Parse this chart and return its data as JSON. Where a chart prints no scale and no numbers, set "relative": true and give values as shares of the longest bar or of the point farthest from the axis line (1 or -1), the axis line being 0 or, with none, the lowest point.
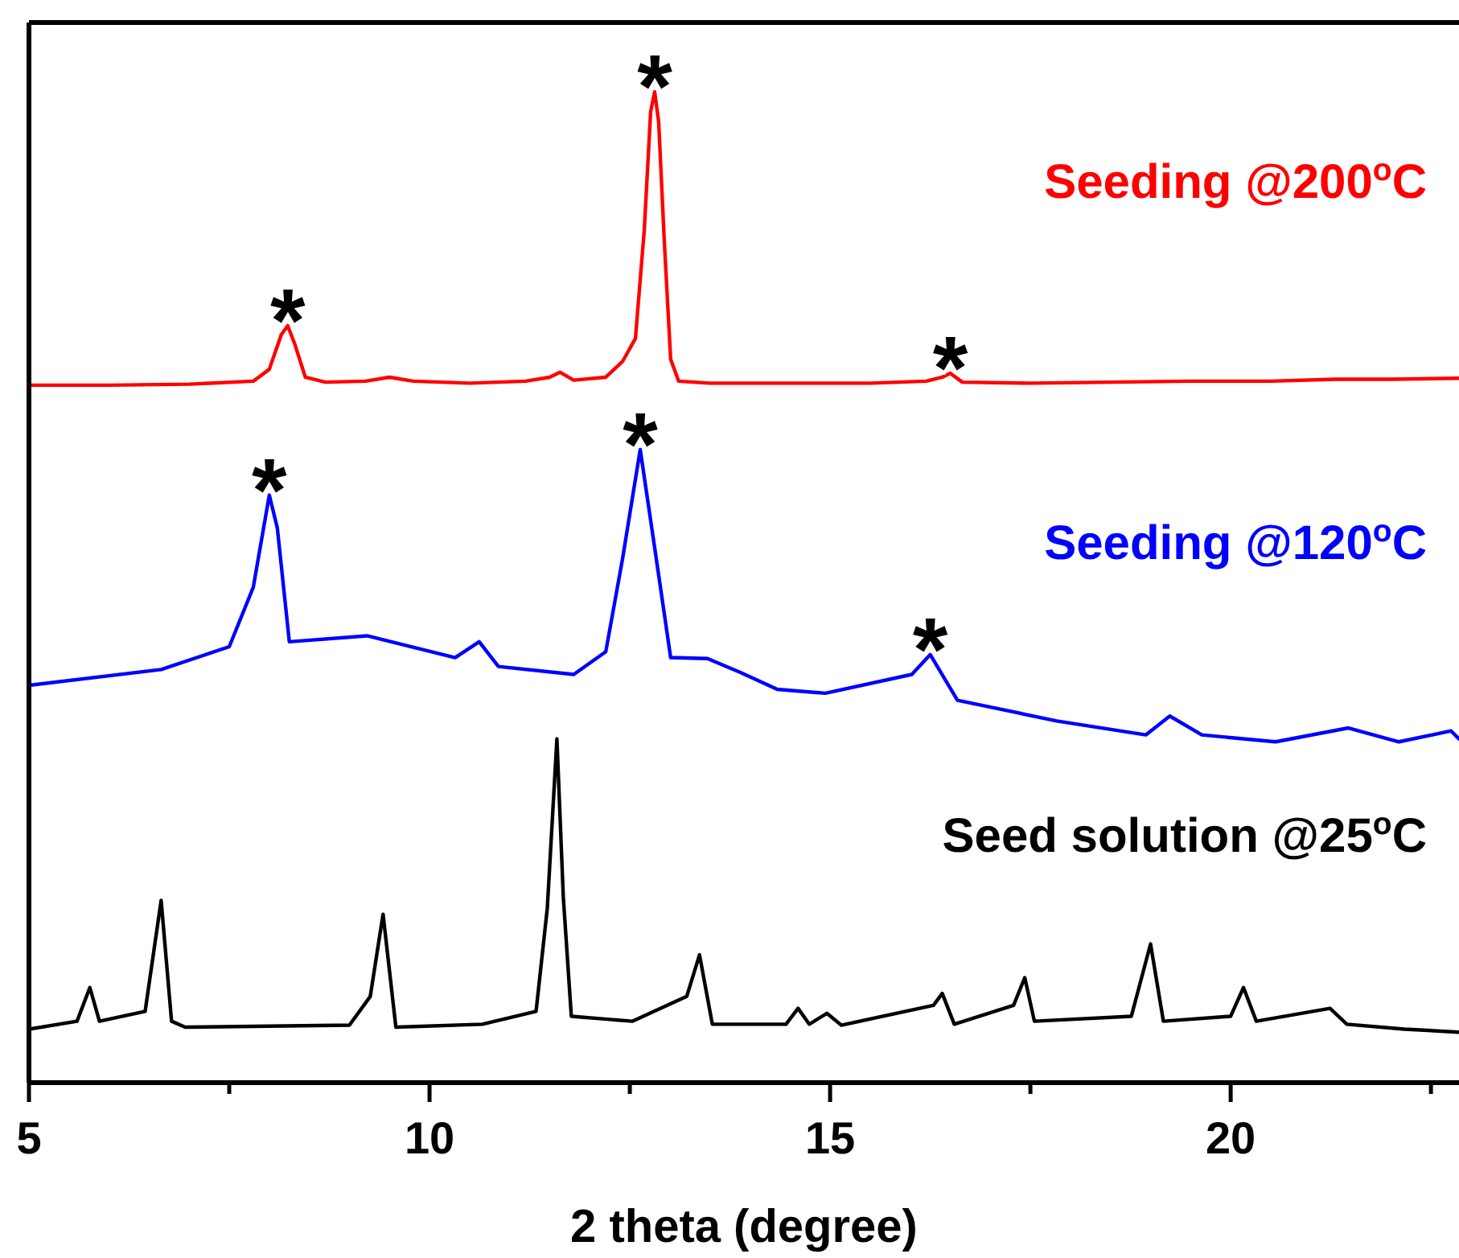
{
  "chart_data": {
    "type": "line",
    "relative": true,
    "xlabel": "2 theta (degree)",
    "xlim": [
      5,
      22.85
    ],
    "xticks": [
      5,
      {
        "value": 7.5,
        "label": null
      },
      10,
      {
        "value": 12.5,
        "label": null
      },
      15,
      {
        "value": 17.5,
        "label": null
      },
      20,
      {
        "value": 22.5,
        "label": null
      }
    ],
    "series": [
      {
        "name": "Seeding @200$^{o}$C",
        "color": "#ff0000",
        "x": [
          5.0,
          6.0,
          7.0,
          7.8,
          8.0,
          8.15,
          8.23,
          8.32,
          8.45,
          8.7,
          9.2,
          9.5,
          9.8,
          10.5,
          11.2,
          11.5,
          11.63,
          11.8,
          12.2,
          12.41,
          12.57,
          12.68,
          12.76,
          12.81,
          12.86,
          12.93,
          13.01,
          13.11,
          13.5,
          14.5,
          15.5,
          16.2,
          16.4,
          16.5,
          16.65,
          17.5,
          18.5,
          19.5,
          20.5,
          21.3,
          22.0,
          22.85
        ],
        "values": [
          0.704,
          0.704,
          0.705,
          0.708,
          0.72,
          0.755,
          0.764,
          0.745,
          0.712,
          0.707,
          0.708,
          0.712,
          0.708,
          0.706,
          0.708,
          0.712,
          0.717,
          0.709,
          0.712,
          0.728,
          0.751,
          0.86,
          0.98,
          1.0,
          0.97,
          0.85,
          0.73,
          0.708,
          0.706,
          0.706,
          0.706,
          0.708,
          0.712,
          0.716,
          0.707,
          0.706,
          0.707,
          0.708,
          0.708,
          0.71,
          0.71,
          0.711
        ]
      },
      {
        "name": "Seeding @120$^{o}$C",
        "color": "#0000ff",
        "x": [
          5.0,
          6.65,
          7.5,
          7.8,
          8.0,
          8.1,
          8.25,
          9.22,
          10.32,
          10.62,
          10.86,
          11.8,
          12.2,
          12.41,
          12.63,
          12.83,
          13.01,
          13.47,
          13.88,
          14.34,
          14.94,
          16.02,
          16.25,
          16.59,
          17.83,
          18.94,
          19.24,
          19.64,
          20.56,
          21.47,
          22.1,
          22.75,
          22.85
        ],
        "values": [
          0.401,
          0.417,
          0.44,
          0.5,
          0.593,
          0.56,
          0.445,
          0.451,
          0.429,
          0.445,
          0.42,
          0.412,
          0.435,
          0.529,
          0.639,
          0.529,
          0.429,
          0.428,
          0.414,
          0.397,
          0.393,
          0.412,
          0.432,
          0.386,
          0.365,
          0.351,
          0.37,
          0.351,
          0.344,
          0.358,
          0.344,
          0.355,
          0.347
        ]
      },
      {
        "name": "Seed solution @25$^{o}$C",
        "color": "#000000",
        "x": [
          5.0,
          5.6,
          5.76,
          5.88,
          6.45,
          6.65,
          6.78,
          6.95,
          9.0,
          9.26,
          9.42,
          9.58,
          10.66,
          11.33,
          11.47,
          11.59,
          11.67,
          11.77,
          12.53,
          13.21,
          13.37,
          13.53,
          14.45,
          14.6,
          14.74,
          14.96,
          15.14,
          16.29,
          16.4,
          16.55,
          17.29,
          17.43,
          17.55,
          18.76,
          19.0,
          19.16,
          20.0,
          20.16,
          20.32,
          21.24,
          21.45,
          22.17,
          22.85
        ],
        "values": [
          0.054,
          0.062,
          0.096,
          0.062,
          0.072,
          0.184,
          0.062,
          0.056,
          0.058,
          0.087,
          0.17,
          0.056,
          0.059,
          0.072,
          0.176,
          0.347,
          0.187,
          0.067,
          0.062,
          0.087,
          0.129,
          0.059,
          0.059,
          0.075,
          0.059,
          0.07,
          0.058,
          0.078,
          0.09,
          0.059,
          0.078,
          0.106,
          0.062,
          0.067,
          0.14,
          0.062,
          0.067,
          0.096,
          0.062,
          0.075,
          0.059,
          0.054,
          0.051
        ]
      }
    ],
    "annotations": [
      {
        "text": "*",
        "x": 8.23,
        "y": 0.764
      },
      {
        "text": "*",
        "x": 12.81,
        "y": 1.0
      },
      {
        "text": "*",
        "x": 16.5,
        "y": 0.716
      },
      {
        "text": "*",
        "x": 8.0,
        "y": 0.593
      },
      {
        "text": "*",
        "x": 12.63,
        "y": 0.639
      },
      {
        "text": "*",
        "x": 16.25,
        "y": 0.432
      }
    ]
  }
}
